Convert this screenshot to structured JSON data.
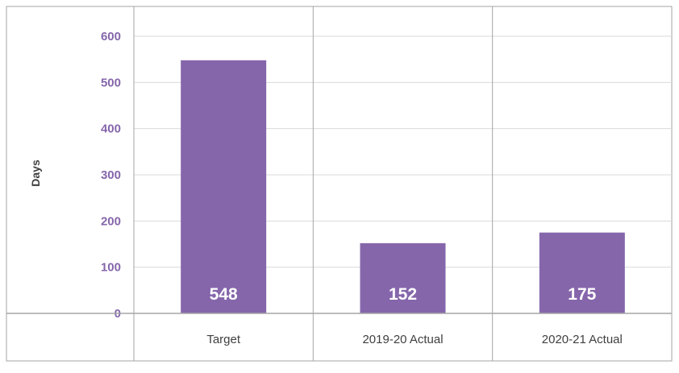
{
  "chart_data": {
    "type": "bar",
    "categories": [
      "Target",
      "2019-20 Actual",
      "2020-21 Actual"
    ],
    "values": [
      548,
      152,
      175
    ],
    "data_labels": [
      "548",
      "152",
      "175"
    ],
    "title": "",
    "xlabel": "",
    "ylabel": "Days",
    "ylim": [
      0,
      600
    ],
    "yticks": [
      0,
      100,
      200,
      300,
      400,
      500,
      600
    ],
    "grid": true,
    "legend": "none",
    "bar_color": "#8566ab",
    "tick_color": "#8566ab",
    "gridline_color": "#d9d9d9"
  }
}
